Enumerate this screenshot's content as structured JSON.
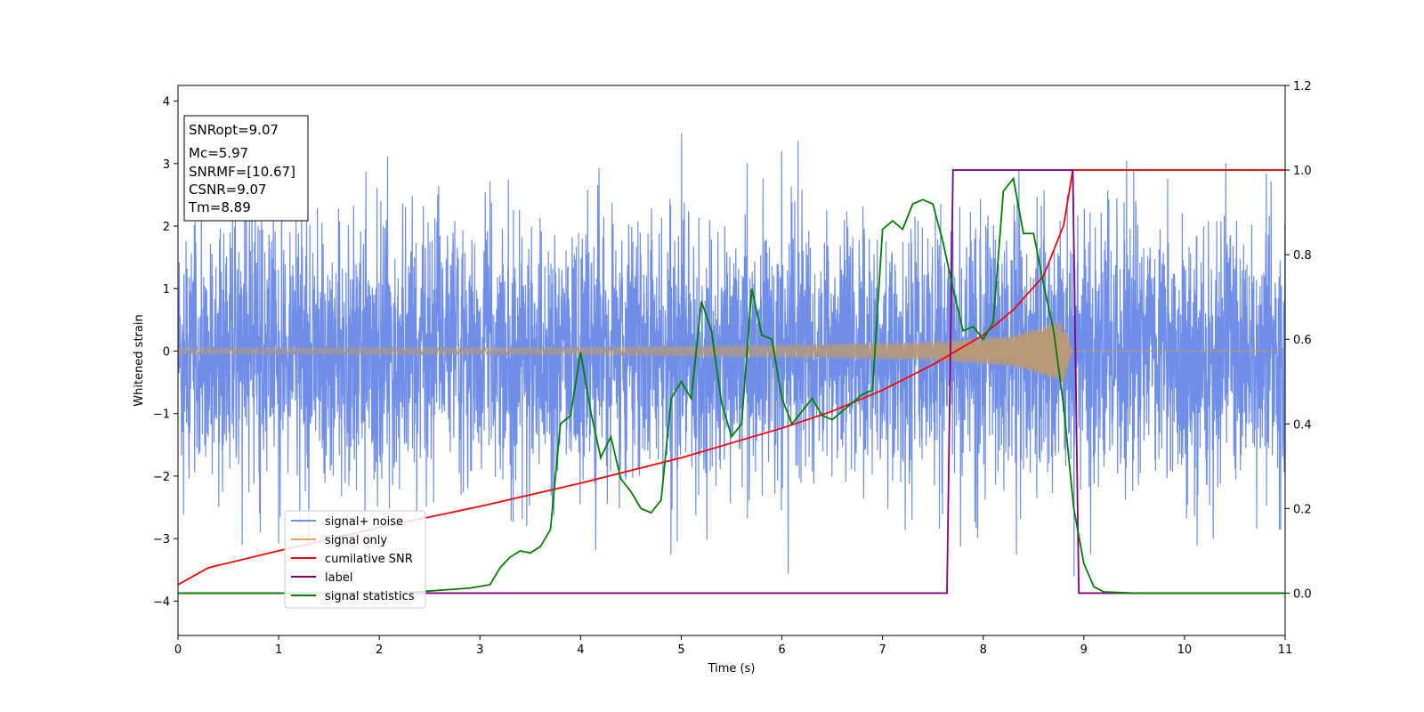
{
  "chart_data": {
    "type": "line",
    "xlabel": "Time (s)",
    "ylabel": "Whitened strain",
    "xlim": [
      0,
      11
    ],
    "ylim": [
      -4.55,
      4.25
    ],
    "y2lim": [
      -0.1,
      1.2
    ],
    "xticks": [
      "0",
      "1",
      "2",
      "3",
      "4",
      "5",
      "6",
      "7",
      "8",
      "9",
      "10",
      "11"
    ],
    "yticks": [
      "−4",
      "−3",
      "−2",
      "−1",
      "0",
      "1",
      "2",
      "3",
      "4"
    ],
    "y2ticks": [
      "0.0",
      "0.2",
      "0.4",
      "0.6",
      "0.8",
      "1.0",
      "1.2"
    ],
    "info_box": [
      "SNRopt=9.07",
      "Mc=5.97",
      "SNRMF=[10.67]",
      "CSNR=9.07",
      "Tm=8.89"
    ],
    "colors": {
      "noise": "#6f8ee8",
      "signal": "#e0a96b",
      "overlap": "#b89a78",
      "csnr": "#ff0000",
      "label": "#800080",
      "stat": "#008000"
    },
    "legend": {
      "placement": "lower-left",
      "entries": [
        "signal+ noise",
        "signal only",
        "cumilative SNR",
        "label",
        "signal statistics"
      ]
    },
    "noise_amplitude_typical": 1.7,
    "signal_envelope": [
      [
        0,
        0.05
      ],
      [
        4,
        0.06
      ],
      [
        6,
        0.1
      ],
      [
        7.5,
        0.15
      ],
      [
        8.3,
        0.25
      ],
      [
        8.8,
        0.5
      ],
      [
        8.89,
        0.0
      ]
    ],
    "series": [
      {
        "name": "cumilative SNR",
        "axis": "right",
        "x": [
          0,
          0.3,
          1,
          2,
          3,
          4,
          5,
          6,
          6.5,
          7,
          7.5,
          8,
          8.3,
          8.6,
          8.8,
          8.89,
          11
        ],
        "values": [
          0.02,
          0.06,
          0.1,
          0.155,
          0.205,
          0.26,
          0.32,
          0.39,
          0.43,
          0.48,
          0.54,
          0.61,
          0.67,
          0.75,
          0.87,
          1.0,
          1.0
        ]
      },
      {
        "name": "label",
        "axis": "right",
        "x": [
          0,
          7.64,
          7.7,
          8.89,
          8.95,
          11
        ],
        "values": [
          0.0,
          0.0,
          1.0,
          1.0,
          0.0,
          0.0
        ]
      },
      {
        "name": "signal statistics",
        "axis": "right",
        "x": [
          0,
          2.2,
          2.5,
          2.9,
          3.1,
          3.2,
          3.3,
          3.4,
          3.5,
          3.6,
          3.7,
          3.8,
          3.9,
          4.0,
          4.1,
          4.2,
          4.3,
          4.4,
          4.5,
          4.6,
          4.7,
          4.8,
          4.9,
          5.0,
          5.1,
          5.2,
          5.3,
          5.4,
          5.5,
          5.6,
          5.7,
          5.8,
          5.9,
          6.0,
          6.1,
          6.2,
          6.3,
          6.4,
          6.5,
          6.6,
          6.7,
          6.8,
          6.9,
          7.0,
          7.1,
          7.2,
          7.3,
          7.4,
          7.5,
          7.6,
          7.7,
          7.8,
          7.9,
          8.0,
          8.1,
          8.2,
          8.3,
          8.4,
          8.5,
          8.6,
          8.7,
          8.8,
          8.9,
          9.0,
          9.1,
          9.2,
          9.5,
          11
        ],
        "values": [
          0.0,
          0.0,
          0.005,
          0.012,
          0.02,
          0.06,
          0.085,
          0.1,
          0.095,
          0.11,
          0.15,
          0.4,
          0.42,
          0.57,
          0.43,
          0.32,
          0.37,
          0.27,
          0.24,
          0.2,
          0.19,
          0.22,
          0.46,
          0.5,
          0.46,
          0.69,
          0.62,
          0.45,
          0.37,
          0.4,
          0.72,
          0.61,
          0.6,
          0.46,
          0.4,
          0.43,
          0.46,
          0.42,
          0.41,
          0.43,
          0.45,
          0.47,
          0.48,
          0.86,
          0.88,
          0.86,
          0.92,
          0.93,
          0.92,
          0.83,
          0.72,
          0.62,
          0.63,
          0.6,
          0.64,
          0.95,
          0.98,
          0.85,
          0.85,
          0.73,
          0.62,
          0.44,
          0.2,
          0.07,
          0.015,
          0.003,
          0.0,
          0.0
        ]
      }
    ]
  }
}
